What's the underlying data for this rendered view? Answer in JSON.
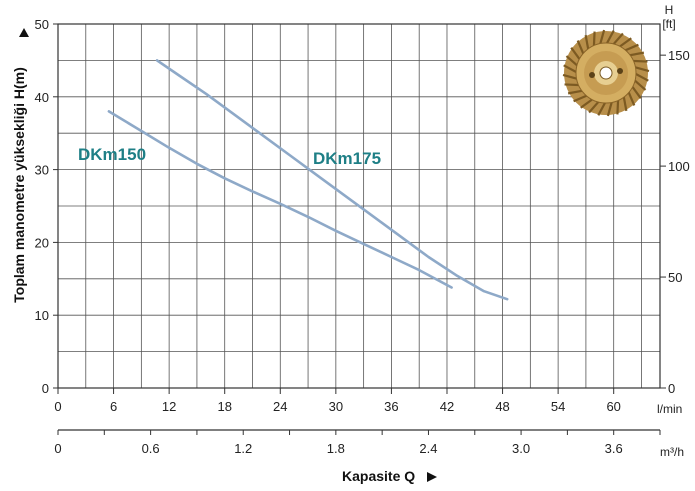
{
  "chart_data": {
    "type": "line",
    "xlabel": "Kapasite Q",
    "ylabel": "Toplam manometre yüksekliği  H(m)",
    "x_unit_primary": "l/min",
    "x_unit_secondary": "m³/h",
    "y_unit_secondary_top": "H",
    "y_unit_secondary": "[ft]",
    "xlim": [
      0,
      65
    ],
    "ylim": [
      0,
      50
    ],
    "x_ticks": [
      0,
      6,
      12,
      18,
      24,
      30,
      36,
      42,
      48,
      54,
      60
    ],
    "y_ticks": [
      0,
      10,
      20,
      30,
      40,
      50
    ],
    "x2_ticks": [
      0,
      0.6,
      1.2,
      1.8,
      2.4,
      3.0,
      3.6
    ],
    "x2_tick_labels": [
      "0",
      "0.6",
      "1.2",
      "1.8",
      "2.4",
      "3.0",
      "3.6"
    ],
    "y2_ticks": [
      0,
      50,
      100,
      150
    ],
    "grid": true,
    "series": [
      {
        "name": "DKm150",
        "color": "#8ea9c8",
        "x": [
          5.5,
          9,
          12,
          15,
          18,
          21,
          24,
          27,
          30,
          33,
          36,
          39,
          42.5
        ],
        "y": [
          38,
          35.3,
          33,
          30.8,
          28.8,
          27,
          25.3,
          23.5,
          21.6,
          19.8,
          18,
          16.2,
          13.8
        ]
      },
      {
        "name": "DKm175",
        "color": "#8ea9c8",
        "x": [
          10.7,
          13,
          16,
          19,
          22,
          25,
          28,
          31,
          34,
          37,
          40,
          43,
          46,
          48.5
        ],
        "y": [
          45,
          43,
          40.4,
          37.6,
          34.8,
          32,
          29.2,
          26.4,
          23.6,
          20.8,
          18,
          15.5,
          13.3,
          12.2
        ]
      }
    ]
  }
}
